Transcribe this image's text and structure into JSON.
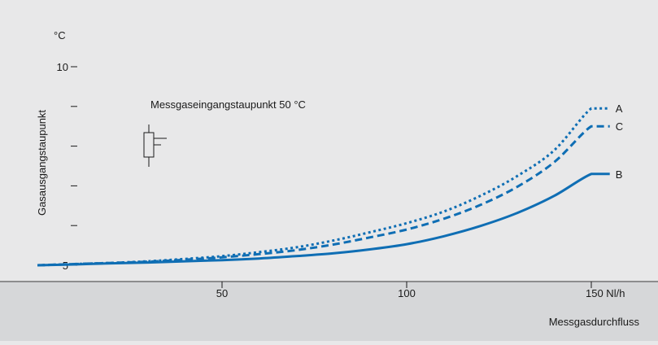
{
  "chart_data": {
    "type": "line",
    "title": "",
    "xlabel": "Messgasdurchfluss",
    "ylabel": "Gasausgangstaupunkt",
    "y_unit": "°C",
    "xlim": [
      0,
      160
    ],
    "ylim": [
      5,
      10
    ],
    "x_ticks": [
      {
        "value": 50,
        "label": "50"
      },
      {
        "value": 100,
        "label": "100"
      },
      {
        "value": 150,
        "label": "150 Nl/h"
      }
    ],
    "y_ticks": [
      {
        "value": 5,
        "label": "5"
      },
      {
        "value": 6,
        "label": ""
      },
      {
        "value": 7,
        "label": ""
      },
      {
        "value": 8,
        "label": ""
      },
      {
        "value": 9,
        "label": ""
      },
      {
        "value": 10,
        "label": "10"
      }
    ],
    "annotation": "Messgaseingangstaupunkt 50 °C",
    "series": [
      {
        "name": "A",
        "color": "#0f6eb4",
        "dash": "dotted",
        "x": [
          0,
          10,
          20,
          30,
          40,
          50,
          60,
          70,
          80,
          90,
          100,
          110,
          120,
          130,
          140,
          150,
          155
        ],
        "y": [
          5.0,
          5.03,
          5.06,
          5.1,
          5.16,
          5.23,
          5.33,
          5.45,
          5.62,
          5.83,
          6.06,
          6.35,
          6.75,
          7.25,
          7.9,
          8.95,
          8.95
        ]
      },
      {
        "name": "C",
        "color": "#0f6eb4",
        "dash": "dashed",
        "x": [
          0,
          10,
          20,
          30,
          40,
          50,
          60,
          70,
          80,
          90,
          100,
          110,
          120,
          130,
          140,
          150,
          155
        ],
        "y": [
          5.0,
          5.03,
          5.06,
          5.09,
          5.14,
          5.2,
          5.28,
          5.38,
          5.52,
          5.7,
          5.9,
          6.17,
          6.52,
          6.98,
          7.6,
          8.5,
          8.5
        ]
      },
      {
        "name": "B",
        "color": "#0f6eb4",
        "dash": "solid",
        "x": [
          0,
          10,
          20,
          30,
          40,
          50,
          60,
          70,
          80,
          90,
          100,
          110,
          120,
          130,
          140,
          150,
          155
        ],
        "y": [
          5.0,
          5.02,
          5.05,
          5.07,
          5.1,
          5.13,
          5.17,
          5.23,
          5.3,
          5.4,
          5.53,
          5.73,
          5.99,
          6.32,
          6.75,
          7.3,
          7.3
        ]
      }
    ],
    "legend": "right end labels",
    "grid": false
  }
}
